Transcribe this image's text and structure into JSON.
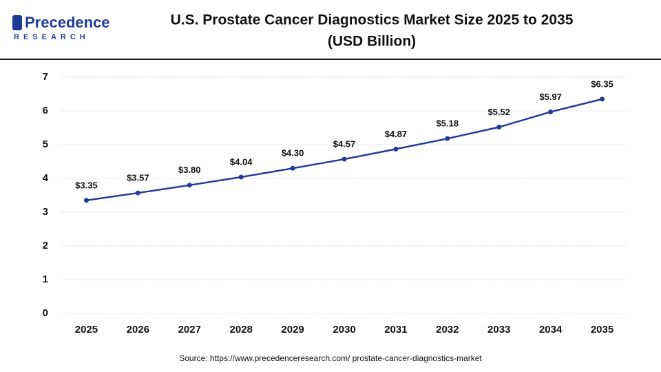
{
  "logo": {
    "name": "Precedence",
    "tagline": "RESEARCH"
  },
  "chart_data": {
    "type": "line",
    "title": "U.S. Prostate Cancer Diagnostics Market Size 2025 to 2035",
    "subtitle": "(USD Billion)",
    "categories": [
      "2025",
      "2026",
      "2027",
      "2028",
      "2029",
      "2030",
      "2031",
      "2032",
      "2033",
      "2034",
      "2035"
    ],
    "values": [
      3.35,
      3.57,
      3.8,
      4.04,
      4.3,
      4.57,
      4.87,
      5.18,
      5.52,
      5.97,
      6.35
    ],
    "value_labels": [
      "$3.35",
      "$3.57",
      "$3.80",
      "$4.04",
      "$4.30",
      "$4.57",
      "$4.87",
      "$5.18",
      "$5.52",
      "$5.97",
      "$6.35"
    ],
    "color": "#1f3c96",
    "ylim": [
      0,
      7
    ],
    "yticks": [
      0,
      1,
      2,
      3,
      4,
      5,
      6,
      7
    ],
    "grid": true,
    "source": "Source: https://www.precedenceresearch.com/ prostate-cancer-diagnostics-market"
  }
}
